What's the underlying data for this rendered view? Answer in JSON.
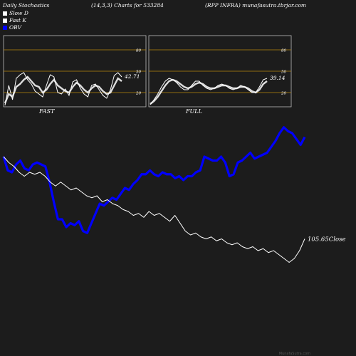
{
  "header": {
    "left": "Daily Stochastics",
    "params": "(14,3,3) Charts for 533284",
    "right": "(RPP INFRA) munafasutra.tbrjar.com"
  },
  "legend": [
    {
      "label": "Slow  D",
      "color": "#ffffff"
    },
    {
      "label": "Fast K",
      "color": "#ffffff"
    },
    {
      "label": "OBV",
      "color": "#0000ff"
    }
  ],
  "footer": "MunafaSutra.com",
  "chart_data": [
    {
      "type": "line",
      "name": "stoch-fast-panel",
      "panel_label": "FAST",
      "ylim": [
        0,
        100
      ],
      "levels": [
        80,
        50,
        20
      ],
      "tick_labels": [
        "80",
        "50",
        "20"
      ],
      "last_value_label": "42.71",
      "series": [
        {
          "name": "Slow  D",
          "values": [
            5,
            18,
            14,
            28,
            32,
            38,
            42,
            36,
            30,
            28,
            20,
            24,
            32,
            38,
            30,
            26,
            22,
            20,
            28,
            34,
            30,
            24,
            20,
            26,
            30,
            28,
            22,
            18,
            20,
            30,
            40,
            36
          ]
        },
        {
          "name": "Fast K",
          "values": [
            2,
            30,
            10,
            40,
            45,
            48,
            38,
            32,
            22,
            18,
            14,
            30,
            45,
            42,
            20,
            18,
            25,
            16,
            35,
            38,
            26,
            18,
            14,
            30,
            32,
            24,
            16,
            12,
            24,
            44,
            48,
            42
          ]
        }
      ]
    },
    {
      "type": "line",
      "name": "stoch-full-panel",
      "panel_label": "FULL",
      "ylim": [
        0,
        100
      ],
      "levels": [
        80,
        50,
        20
      ],
      "tick_labels": [
        "80",
        "50",
        "20"
      ],
      "last_value_label": "39.14",
      "series": [
        {
          "name": "Slow  D",
          "values": [
            4,
            8,
            14,
            22,
            30,
            36,
            38,
            36,
            32,
            28,
            26,
            28,
            32,
            34,
            32,
            28,
            26,
            26,
            28,
            30,
            30,
            28,
            26,
            26,
            28,
            28,
            26,
            22,
            20,
            24,
            32,
            36
          ]
        },
        {
          "name": "Fast K",
          "values": [
            3,
            10,
            18,
            28,
            36,
            40,
            38,
            34,
            28,
            24,
            24,
            30,
            36,
            36,
            30,
            26,
            24,
            26,
            30,
            32,
            30,
            26,
            24,
            26,
            30,
            28,
            24,
            20,
            20,
            28,
            38,
            40
          ]
        }
      ]
    },
    {
      "type": "line",
      "name": "price-obv-chart",
      "close_label": "105.65Close",
      "series": [
        {
          "name": "OBV",
          "values": [
            0.6,
            0.53,
            0.52,
            0.56,
            0.58,
            0.54,
            0.53,
            0.56,
            0.57,
            0.56,
            0.55,
            0.47,
            0.37,
            0.28,
            0.28,
            0.24,
            0.26,
            0.25,
            0.27,
            0.22,
            0.21,
            0.26,
            0.31,
            0.36,
            0.35,
            0.37,
            0.39,
            0.38,
            0.41,
            0.44,
            0.43,
            0.46,
            0.48,
            0.51,
            0.51,
            0.53,
            0.51,
            0.5,
            0.52,
            0.51,
            0.51,
            0.49,
            0.5,
            0.48,
            0.5,
            0.5,
            0.52,
            0.53,
            0.6,
            0.59,
            0.58,
            0.58,
            0.6,
            0.57,
            0.5,
            0.51,
            0.57,
            0.58,
            0.6,
            0.62,
            0.59,
            0.6,
            0.61,
            0.62,
            0.65,
            0.68,
            0.72,
            0.75,
            0.73,
            0.72,
            0.69,
            0.66,
            0.7
          ]
        },
        {
          "name": "Close",
          "values": [
            0.6,
            0.57,
            0.55,
            0.52,
            0.5,
            0.52,
            0.51,
            0.52,
            0.5,
            0.47,
            0.45,
            0.47,
            0.45,
            0.43,
            0.44,
            0.42,
            0.4,
            0.39,
            0.4,
            0.37,
            0.38,
            0.36,
            0.35,
            0.33,
            0.32,
            0.3,
            0.31,
            0.29,
            0.32,
            0.3,
            0.31,
            0.29,
            0.27,
            0.3,
            0.26,
            0.22,
            0.2,
            0.21,
            0.19,
            0.18,
            0.19,
            0.17,
            0.18,
            0.16,
            0.15,
            0.16,
            0.14,
            0.13,
            0.14,
            0.12,
            0.13,
            0.11,
            0.12,
            0.1,
            0.08,
            0.06,
            0.08,
            0.12,
            0.18
          ]
        }
      ]
    }
  ]
}
